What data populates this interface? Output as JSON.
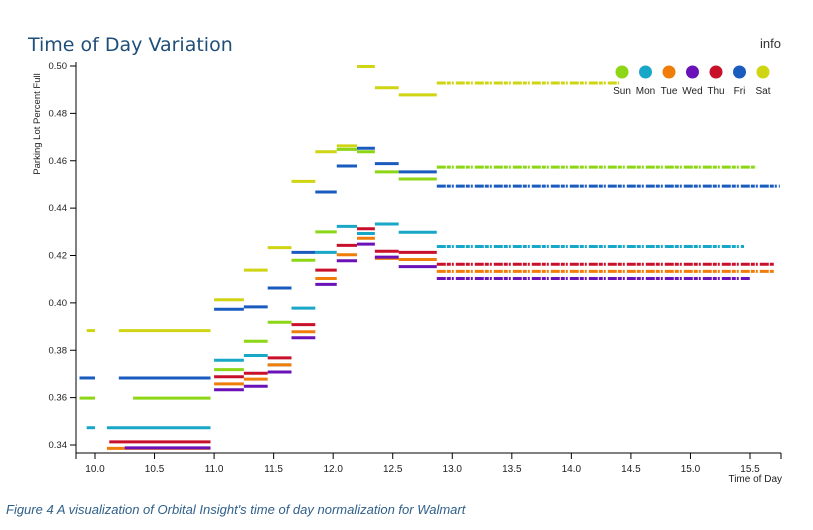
{
  "page": {
    "title": "Time of Day Variation",
    "info_label": "info",
    "caption": "Figure 4 A visualization of Orbital Insight's time of day normalization for Walmart"
  },
  "chart_data": {
    "type": "scatter",
    "title": "Time of Day Variation",
    "xlabel": "Time of Day",
    "ylabel": "Parking Lot Percent Full",
    "xlim": [
      9.85,
      15.8
    ],
    "ylim": [
      0.336,
      0.501
    ],
    "x_ticks": [
      "10.0",
      "10.5",
      "11.0",
      "11.5",
      "12.0",
      "12.5",
      "13.0",
      "13.5",
      "14.0",
      "14.5",
      "15.0",
      "15.5"
    ],
    "y_ticks": [
      "0.34",
      "0.36",
      "0.38",
      "0.40",
      "0.42",
      "0.44",
      "0.46",
      "0.48",
      "0.50"
    ],
    "grid": false,
    "legend_position": "top-right",
    "series": [
      {
        "name": "Sun",
        "color": "#8cd616",
        "segments": [
          {
            "x": [
              9.87,
              10.0
            ],
            "y": 0.3598
          },
          {
            "x": [
              10.32,
              10.97
            ],
            "y": 0.3598
          },
          {
            "x": [
              11.0,
              11.25
            ],
            "y": 0.3718
          },
          {
            "x": [
              11.25,
              11.45
            ],
            "y": 0.3838
          },
          {
            "x": [
              11.45,
              11.65
            ],
            "y": 0.3918
          },
          {
            "x": [
              11.65,
              11.85
            ],
            "y": 0.418
          },
          {
            "x": [
              11.85,
              12.03
            ],
            "y": 0.43
          },
          {
            "x": [
              12.03,
              12.2
            ],
            "y": 0.4648
          },
          {
            "x": [
              12.2,
              12.35
            ],
            "y": 0.4638
          },
          {
            "x": [
              12.35,
              12.55
            ],
            "y": 0.4553
          },
          {
            "x": [
              12.55,
              12.87
            ],
            "y": 0.4523
          },
          {
            "x": [
              12.87,
              15.55
            ],
            "y": 0.4573
          }
        ]
      },
      {
        "name": "Mon",
        "color": "#19a7c8",
        "segments": [
          {
            "x": [
              9.93,
              10.0
            ],
            "y": 0.3473
          },
          {
            "x": [
              10.1,
              10.97
            ],
            "y": 0.3473
          },
          {
            "x": [
              11.0,
              11.25
            ],
            "y": 0.3758
          },
          {
            "x": [
              11.25,
              11.45
            ],
            "y": 0.3778
          },
          {
            "x": [
              11.45,
              11.65
            ],
            "y": 0.3738
          },
          {
            "x": [
              11.65,
              11.85
            ],
            "y": 0.3978
          },
          {
            "x": [
              11.85,
              12.03
            ],
            "y": 0.4213
          },
          {
            "x": [
              12.03,
              12.2
            ],
            "y": 0.4323
          },
          {
            "x": [
              12.2,
              12.35
            ],
            "y": 0.4293
          },
          {
            "x": [
              12.35,
              12.55
            ],
            "y": 0.4333
          },
          {
            "x": [
              12.55,
              12.87
            ],
            "y": 0.4298
          },
          {
            "x": [
              12.87,
              15.45
            ],
            "y": 0.4238
          }
        ]
      },
      {
        "name": "Tue",
        "color": "#f07d0a",
        "segments": [
          {
            "x": [
              10.1,
              10.97
            ],
            "y": 0.3386
          },
          {
            "x": [
              11.0,
              11.25
            ],
            "y": 0.3658
          },
          {
            "x": [
              11.25,
              11.45
            ],
            "y": 0.3678
          },
          {
            "x": [
              11.45,
              11.65
            ],
            "y": 0.3738
          },
          {
            "x": [
              11.65,
              11.85
            ],
            "y": 0.3878
          },
          {
            "x": [
              11.85,
              12.03
            ],
            "y": 0.4103
          },
          {
            "x": [
              12.03,
              12.2
            ],
            "y": 0.4203
          },
          {
            "x": [
              12.2,
              12.35
            ],
            "y": 0.4273
          },
          {
            "x": [
              12.35,
              12.55
            ],
            "y": 0.4188
          },
          {
            "x": [
              12.55,
              12.87
            ],
            "y": 0.4183
          },
          {
            "x": [
              12.87,
              15.7
            ],
            "y": 0.4133
          }
        ]
      },
      {
        "name": "Wed",
        "color": "#6a12b8",
        "segments": [
          {
            "x": [
              10.25,
              10.97
            ],
            "y": 0.3388
          },
          {
            "x": [
              11.0,
              11.25
            ],
            "y": 0.3633
          },
          {
            "x": [
              11.25,
              11.45
            ],
            "y": 0.3648
          },
          {
            "x": [
              11.45,
              11.65
            ],
            "y": 0.3708
          },
          {
            "x": [
              11.65,
              11.85
            ],
            "y": 0.3853
          },
          {
            "x": [
              11.85,
              12.03
            ],
            "y": 0.4078
          },
          {
            "x": [
              12.03,
              12.2
            ],
            "y": 0.4178
          },
          {
            "x": [
              12.2,
              12.35
            ],
            "y": 0.4248
          },
          {
            "x": [
              12.35,
              12.55
            ],
            "y": 0.4193
          },
          {
            "x": [
              12.55,
              12.87
            ],
            "y": 0.4153
          },
          {
            "x": [
              12.87,
              15.5
            ],
            "y": 0.4103
          }
        ]
      },
      {
        "name": "Thu",
        "color": "#c8102a",
        "segments": [
          {
            "x": [
              10.12,
              10.97
            ],
            "y": 0.3413
          },
          {
            "x": [
              11.0,
              11.25
            ],
            "y": 0.3688
          },
          {
            "x": [
              11.25,
              11.45
            ],
            "y": 0.3703
          },
          {
            "x": [
              11.45,
              11.65
            ],
            "y": 0.3768
          },
          {
            "x": [
              11.65,
              11.85
            ],
            "y": 0.3908
          },
          {
            "x": [
              11.85,
              12.03
            ],
            "y": 0.4138
          },
          {
            "x": [
              12.03,
              12.2
            ],
            "y": 0.4243
          },
          {
            "x": [
              12.2,
              12.35
            ],
            "y": 0.4313
          },
          {
            "x": [
              12.35,
              12.55
            ],
            "y": 0.4218
          },
          {
            "x": [
              12.55,
              12.87
            ],
            "y": 0.4213
          },
          {
            "x": [
              12.87,
              15.7
            ],
            "y": 0.4163
          }
        ]
      },
      {
        "name": "Fri",
        "color": "#1a5bc0",
        "segments": [
          {
            "x": [
              9.87,
              10.0
            ],
            "y": 0.3683
          },
          {
            "x": [
              10.2,
              10.97
            ],
            "y": 0.3683
          },
          {
            "x": [
              11.0,
              11.25
            ],
            "y": 0.3973
          },
          {
            "x": [
              11.25,
              11.45
            ],
            "y": 0.3983
          },
          {
            "x": [
              11.45,
              11.65
            ],
            "y": 0.4063
          },
          {
            "x": [
              11.65,
              11.85
            ],
            "y": 0.4213
          },
          {
            "x": [
              11.85,
              12.03
            ],
            "y": 0.4468
          },
          {
            "x": [
              12.03,
              12.2
            ],
            "y": 0.4578
          },
          {
            "x": [
              12.2,
              12.35
            ],
            "y": 0.4653
          },
          {
            "x": [
              12.35,
              12.55
            ],
            "y": 0.4588
          },
          {
            "x": [
              12.55,
              12.87
            ],
            "y": 0.4553
          },
          {
            "x": [
              12.87,
              15.75
            ],
            "y": 0.4493
          }
        ]
      },
      {
        "name": "Sat",
        "color": "#cfd413",
        "segments": [
          {
            "x": [
              9.93,
              10.0
            ],
            "y": 0.3883
          },
          {
            "x": [
              10.2,
              10.97
            ],
            "y": 0.3883
          },
          {
            "x": [
              11.0,
              11.25
            ],
            "y": 0.4013
          },
          {
            "x": [
              11.25,
              11.45
            ],
            "y": 0.4138
          },
          {
            "x": [
              11.45,
              11.65
            ],
            "y": 0.4233
          },
          {
            "x": [
              11.65,
              11.85
            ],
            "y": 0.4513
          },
          {
            "x": [
              11.85,
              12.03
            ],
            "y": 0.4638
          },
          {
            "x": [
              12.03,
              12.2
            ],
            "y": 0.4663
          },
          {
            "x": [
              12.2,
              12.35
            ],
            "y": 0.4998
          },
          {
            "x": [
              12.35,
              12.55
            ],
            "y": 0.4908
          },
          {
            "x": [
              12.55,
              12.87
            ],
            "y": 0.4878
          },
          {
            "x": [
              12.87,
              14.4
            ],
            "y": 0.4928
          }
        ]
      }
    ]
  }
}
